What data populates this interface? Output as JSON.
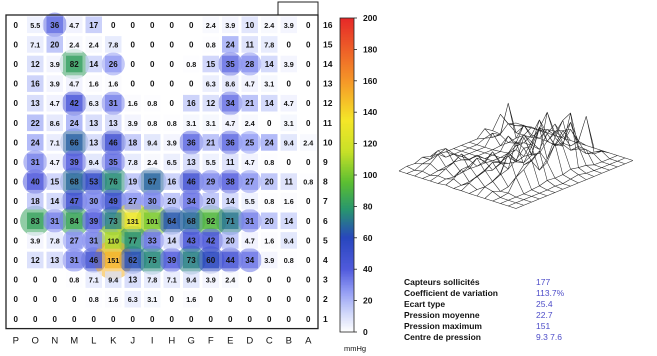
{
  "chart_data": [
    {
      "type": "heatmap",
      "columns": [
        "P",
        "O",
        "N",
        "M",
        "L",
        "K",
        "J",
        "I",
        "H",
        "G",
        "F",
        "E",
        "D",
        "C",
        "B",
        "A"
      ],
      "rows": [
        "16",
        "15",
        "14",
        "13",
        "12",
        "11",
        "10",
        "9",
        "8",
        "7",
        "6",
        "5",
        "4",
        "3",
        "2",
        "1"
      ],
      "values": [
        [
          0,
          5.5,
          36,
          4.7,
          17,
          0,
          0,
          0,
          0,
          0,
          2.4,
          3.9,
          10,
          2.4,
          3.9,
          0
        ],
        [
          0,
          7.1,
          20,
          2.4,
          2.4,
          7.8,
          0,
          0,
          0,
          0,
          0.8,
          24,
          11,
          7.8,
          0,
          0
        ],
        [
          0,
          12,
          3.9,
          82,
          14,
          26,
          0,
          0,
          0,
          0.8,
          15,
          35,
          28,
          14,
          3.9,
          0
        ],
        [
          0,
          16,
          3.9,
          4.7,
          1.6,
          1.6,
          0,
          0,
          0,
          0,
          6.3,
          8.6,
          4.7,
          3.1,
          0,
          0
        ],
        [
          0,
          13,
          4.7,
          42,
          6.3,
          31,
          1.6,
          0.8,
          0,
          16,
          12,
          34,
          21,
          14,
          4.7,
          0
        ],
        [
          0,
          22,
          8.6,
          24,
          13,
          13,
          3.9,
          0.8,
          0.8,
          3.1,
          3.1,
          4.7,
          2.4,
          0,
          3.1,
          0
        ],
        [
          0,
          24,
          7.1,
          66,
          13,
          46,
          18,
          9.4,
          3.9,
          36,
          21,
          36,
          25,
          24,
          9.4,
          2.4
        ],
        [
          0,
          31,
          4.7,
          39,
          9.4,
          35,
          7.8,
          2.4,
          6.5,
          13,
          5.5,
          11,
          4.7,
          0.8,
          0,
          0
        ],
        [
          0,
          40,
          15,
          68,
          53,
          76,
          19,
          67,
          16,
          46,
          29,
          38,
          27,
          20,
          11,
          0.8
        ],
        [
          0,
          18,
          14,
          47,
          30,
          49,
          27,
          30,
          20,
          34,
          20,
          14,
          5.5,
          0.8,
          1.6,
          0
        ],
        [
          0,
          83,
          31,
          84,
          39,
          73,
          131,
          101,
          64,
          68,
          92,
          71,
          31,
          20,
          14,
          0
        ],
        [
          0,
          3.9,
          7.8,
          27,
          31,
          110,
          77,
          33,
          14,
          43,
          42,
          20,
          4.7,
          1.6,
          9.4,
          0
        ],
        [
          0,
          12,
          13,
          31,
          46,
          151,
          62,
          75,
          39,
          73,
          60,
          44,
          34,
          3.9,
          0.8,
          0
        ],
        [
          0,
          0,
          0,
          0.8,
          7.1,
          9.4,
          13,
          7.8,
          7.1,
          9.4,
          3.9,
          2.4,
          0,
          0,
          0,
          0
        ],
        [
          0,
          0,
          0,
          0,
          0.8,
          1.6,
          6.3,
          3.1,
          0,
          1.6,
          0,
          0,
          0,
          0,
          0,
          0
        ],
        [
          0,
          0,
          0,
          0,
          0,
          0,
          0,
          0,
          0,
          0,
          0,
          0,
          0,
          0,
          0,
          0
        ]
      ],
      "colorbar": {
        "ticks": [
          0,
          20,
          40,
          60,
          80,
          100,
          120,
          140,
          160,
          180,
          200
        ],
        "min": 0,
        "max": 200,
        "unit": "mmHg"
      }
    },
    {
      "type": "surface",
      "title": ""
    }
  ],
  "stats": [
    {
      "label": "Capteurs sollicités",
      "value": "177"
    },
    {
      "label": "Coefficient de variation",
      "value": "113.7%"
    },
    {
      "label": "Ecart type",
      "value": "25.4"
    },
    {
      "label": "Pression moyenne",
      "value": "22.7"
    },
    {
      "label": "Pression maximum",
      "value": "151"
    },
    {
      "label": "Centre de pression",
      "value": "9.3  7.6"
    }
  ]
}
